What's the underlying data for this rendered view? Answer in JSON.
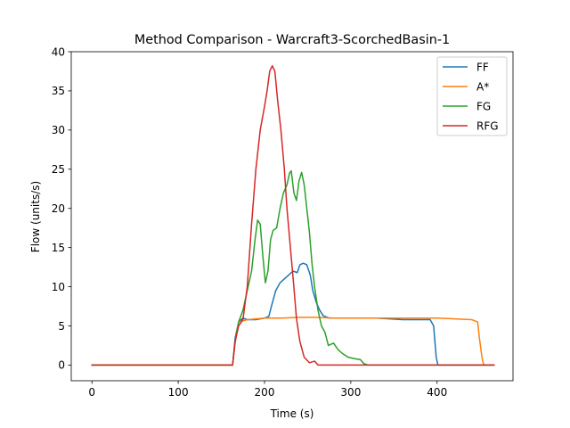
{
  "chart_data": {
    "type": "line",
    "title": "Method Comparison - Warcraft3-ScorchedBasin-1",
    "xlabel": "Time (s)",
    "ylabel": "Flow (units/s)",
    "xlim": [
      -24,
      488
    ],
    "ylim": [
      -2,
      40
    ],
    "xticks": [
      0,
      100,
      200,
      300,
      400
    ],
    "yticks": [
      0,
      5,
      10,
      15,
      20,
      25,
      30,
      35,
      40
    ],
    "grid": false,
    "legend_position": "top-right",
    "series": [
      {
        "name": "FF",
        "color": "#1f77b4",
        "points": [
          [
            0,
            0
          ],
          [
            163,
            0
          ],
          [
            166,
            3.5
          ],
          [
            170,
            5.5
          ],
          [
            175,
            6
          ],
          [
            180,
            5.8
          ],
          [
            190,
            5.8
          ],
          [
            200,
            6
          ],
          [
            205,
            6.2
          ],
          [
            208,
            7.5
          ],
          [
            213,
            9.5
          ],
          [
            218,
            10.5
          ],
          [
            223,
            11
          ],
          [
            228,
            11.5
          ],
          [
            233,
            12
          ],
          [
            238,
            11.8
          ],
          [
            241,
            12.8
          ],
          [
            245,
            13
          ],
          [
            249,
            12.8
          ],
          [
            253,
            11.5
          ],
          [
            256,
            9.5
          ],
          [
            260,
            8
          ],
          [
            264,
            7
          ],
          [
            268,
            6.3
          ],
          [
            275,
            6
          ],
          [
            300,
            6
          ],
          [
            330,
            6
          ],
          [
            360,
            5.8
          ],
          [
            392,
            5.8
          ],
          [
            396,
            5
          ],
          [
            399,
            1
          ],
          [
            401,
            0
          ],
          [
            466,
            0
          ]
        ]
      },
      {
        "name": "A*",
        "color": "#ff7f0e",
        "points": [
          [
            0,
            0
          ],
          [
            163,
            0
          ],
          [
            166,
            3
          ],
          [
            170,
            5.5
          ],
          [
            180,
            5.8
          ],
          [
            200,
            6
          ],
          [
            220,
            6
          ],
          [
            240,
            6.1
          ],
          [
            260,
            6.1
          ],
          [
            280,
            6
          ],
          [
            300,
            6
          ],
          [
            320,
            6
          ],
          [
            340,
            6
          ],
          [
            360,
            6
          ],
          [
            380,
            6
          ],
          [
            400,
            6
          ],
          [
            420,
            5.9
          ],
          [
            440,
            5.8
          ],
          [
            447,
            5.5
          ],
          [
            449,
            3.5
          ],
          [
            452,
            1
          ],
          [
            454,
            0
          ],
          [
            466,
            0
          ]
        ]
      },
      {
        "name": "FG",
        "color": "#2ca02c",
        "points": [
          [
            0,
            0
          ],
          [
            163,
            0
          ],
          [
            166,
            3
          ],
          [
            170,
            5.5
          ],
          [
            175,
            7
          ],
          [
            180,
            9.5
          ],
          [
            185,
            12
          ],
          [
            189,
            16
          ],
          [
            192,
            18.5
          ],
          [
            195,
            18
          ],
          [
            198,
            14
          ],
          [
            201,
            10.5
          ],
          [
            204,
            12
          ],
          [
            207,
            16
          ],
          [
            210,
            17.2
          ],
          [
            214,
            17.5
          ],
          [
            218,
            20
          ],
          [
            222,
            22
          ],
          [
            226,
            23
          ],
          [
            229,
            24.5
          ],
          [
            231,
            24.8
          ],
          [
            234,
            22
          ],
          [
            237,
            21
          ],
          [
            240,
            23.5
          ],
          [
            243,
            24.6
          ],
          [
            246,
            23
          ],
          [
            249,
            20
          ],
          [
            252,
            17
          ],
          [
            255,
            13
          ],
          [
            258,
            10
          ],
          [
            262,
            7
          ],
          [
            266,
            5
          ],
          [
            270,
            4.2
          ],
          [
            274,
            2.5
          ],
          [
            280,
            2.8
          ],
          [
            285,
            2
          ],
          [
            290,
            1.5
          ],
          [
            297,
            1
          ],
          [
            305,
            0.8
          ],
          [
            311,
            0.7
          ],
          [
            315,
            0.2
          ],
          [
            320,
            0
          ],
          [
            466,
            0
          ]
        ]
      },
      {
        "name": "RFG",
        "color": "#d62728",
        "points": [
          [
            0,
            0
          ],
          [
            163,
            0
          ],
          [
            166,
            3
          ],
          [
            170,
            5
          ],
          [
            175,
            5.8
          ],
          [
            180,
            10
          ],
          [
            185,
            18
          ],
          [
            190,
            25
          ],
          [
            195,
            30
          ],
          [
            200,
            33
          ],
          [
            203,
            35
          ],
          [
            206,
            37.5
          ],
          [
            209,
            38.2
          ],
          [
            212,
            37.5
          ],
          [
            215,
            34
          ],
          [
            219,
            30
          ],
          [
            223,
            25
          ],
          [
            226,
            20
          ],
          [
            230,
            15
          ],
          [
            234,
            10
          ],
          [
            237,
            6
          ],
          [
            241,
            3
          ],
          [
            246,
            1
          ],
          [
            252,
            0.3
          ],
          [
            258,
            0.5
          ],
          [
            262,
            0
          ],
          [
            270,
            0
          ],
          [
            466,
            0
          ]
        ]
      }
    ]
  }
}
